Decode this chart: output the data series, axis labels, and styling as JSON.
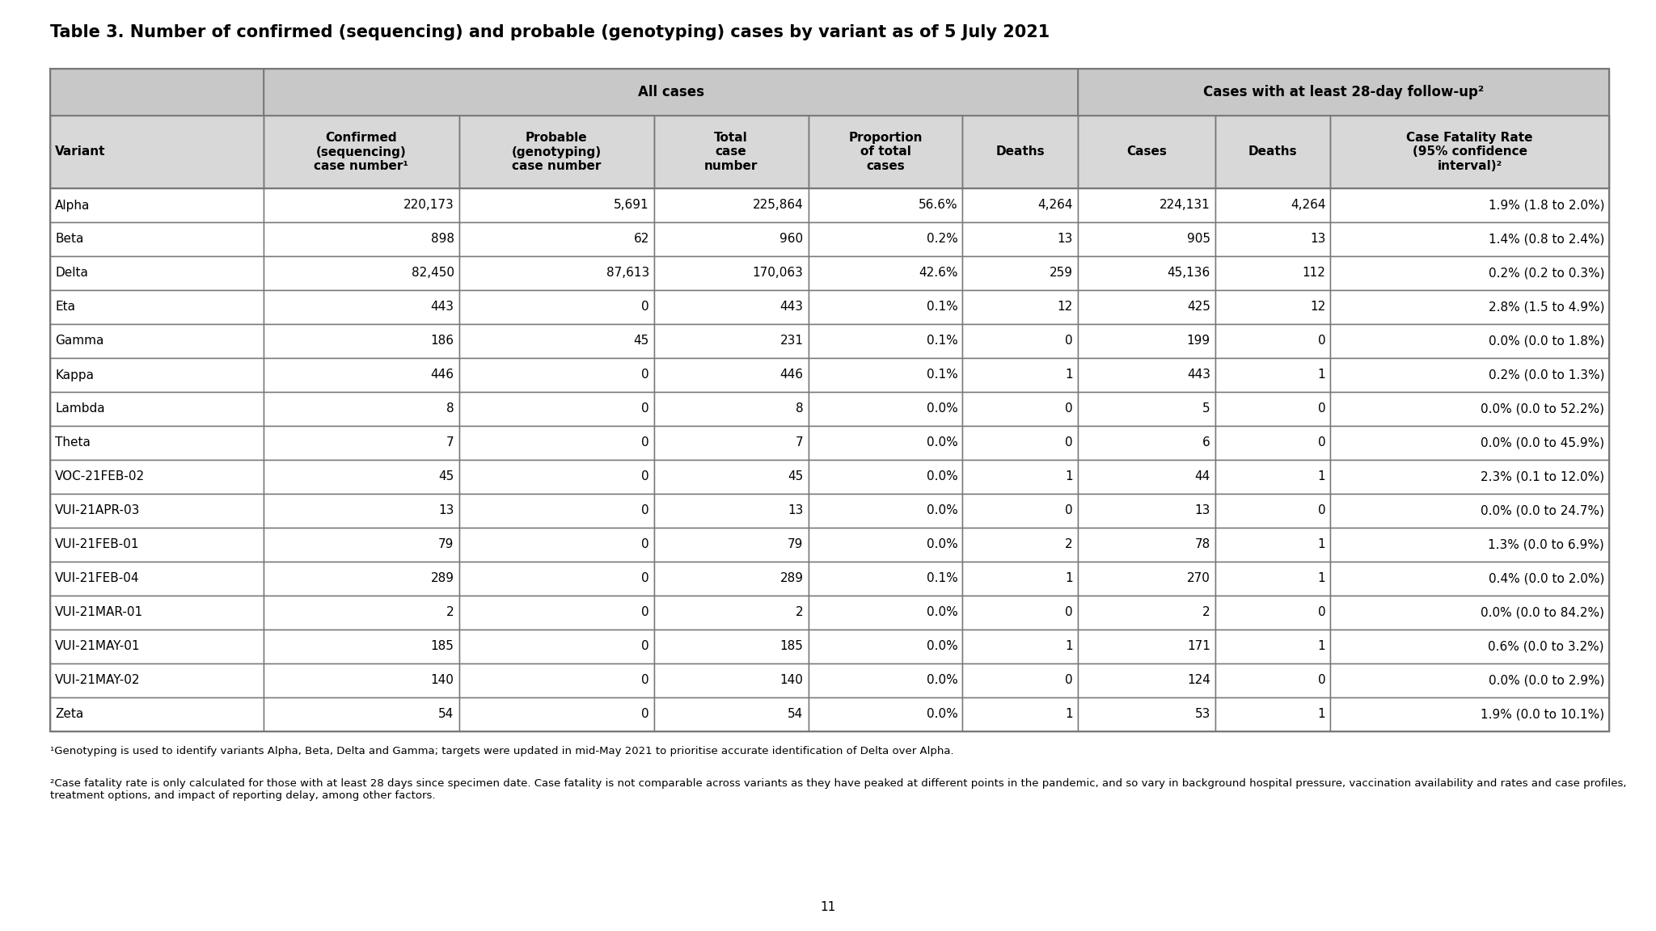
{
  "title": "Table 3. Number of confirmed (sequencing) and probable (genotyping) cases by variant as of 5 July 2021",
  "col_group1_label": "All cases",
  "col_group2_label": "Cases with at least 28-day follow-up²",
  "col_headers": [
    "Variant",
    "Confirmed\n(sequencing)\ncase number¹",
    "Probable\n(genotyping)\ncase number",
    "Total\ncase\nnumber",
    "Proportion\nof total\ncases",
    "Deaths",
    "Cases",
    "Deaths",
    "Case Fatality Rate\n(95% confidence\ninterval)²"
  ],
  "rows": [
    [
      "Alpha",
      "220,173",
      "5,691",
      "225,864",
      "56.6%",
      "4,264",
      "224,131",
      "4,264",
      "1.9% (1.8 to 2.0%)"
    ],
    [
      "Beta",
      "898",
      "62",
      "960",
      "0.2%",
      "13",
      "905",
      "13",
      "1.4% (0.8 to 2.4%)"
    ],
    [
      "Delta",
      "82,450",
      "87,613",
      "170,063",
      "42.6%",
      "259",
      "45,136",
      "112",
      "0.2% (0.2 to 0.3%)"
    ],
    [
      "Eta",
      "443",
      "0",
      "443",
      "0.1%",
      "12",
      "425",
      "12",
      "2.8% (1.5 to 4.9%)"
    ],
    [
      "Gamma",
      "186",
      "45",
      "231",
      "0.1%",
      "0",
      "199",
      "0",
      "0.0% (0.0 to 1.8%)"
    ],
    [
      "Kappa",
      "446",
      "0",
      "446",
      "0.1%",
      "1",
      "443",
      "1",
      "0.2% (0.0 to 1.3%)"
    ],
    [
      "Lambda",
      "8",
      "0",
      "8",
      "0.0%",
      "0",
      "5",
      "0",
      "0.0% (0.0 to 52.2%)"
    ],
    [
      "Theta",
      "7",
      "0",
      "7",
      "0.0%",
      "0",
      "6",
      "0",
      "0.0% (0.0 to 45.9%)"
    ],
    [
      "VOC-21FEB-02",
      "45",
      "0",
      "45",
      "0.0%",
      "1",
      "44",
      "1",
      "2.3% (0.1 to 12.0%)"
    ],
    [
      "VUI-21APR-03",
      "13",
      "0",
      "13",
      "0.0%",
      "0",
      "13",
      "0",
      "0.0% (0.0 to 24.7%)"
    ],
    [
      "VUI-21FEB-01",
      "79",
      "0",
      "79",
      "0.0%",
      "2",
      "78",
      "1",
      "1.3% (0.0 to 6.9%)"
    ],
    [
      "VUI-21FEB-04",
      "289",
      "0",
      "289",
      "0.1%",
      "1",
      "270",
      "1",
      "0.4% (0.0 to 2.0%)"
    ],
    [
      "VUI-21MAR-01",
      "2",
      "0",
      "2",
      "0.0%",
      "0",
      "2",
      "0",
      "0.0% (0.0 to 84.2%)"
    ],
    [
      "VUI-21MAY-01",
      "185",
      "0",
      "185",
      "0.0%",
      "1",
      "171",
      "1",
      "0.6% (0.0 to 3.2%)"
    ],
    [
      "VUI-21MAY-02",
      "140",
      "0",
      "140",
      "0.0%",
      "0",
      "124",
      "0",
      "0.0% (0.0 to 2.9%)"
    ],
    [
      "Zeta",
      "54",
      "0",
      "54",
      "0.0%",
      "1",
      "53",
      "1",
      "1.9% (0.0 to 10.1%)"
    ]
  ],
  "footnote1": "¹Genotyping is used to identify variants Alpha, Beta, Delta and Gamma; targets were updated in mid-May 2021 to prioritise accurate identification of Delta over Alpha.",
  "footnote2": "²Case fatality rate is only calculated for those with at least 28 days since specimen date. Case fatality is not comparable across variants as they have peaked at different points in the pandemic, and so vary in background hospital pressure, vaccination availability and rates and case profiles, treatment options, and impact of reporting delay, among other factors.",
  "page_number": "11",
  "header_bg": "#c8c8c8",
  "subheader_bg": "#d8d8d8",
  "white_bg": "#ffffff",
  "border_color": "#777777",
  "text_color": "#000000",
  "title_fontsize": 15,
  "header_fontsize": 11,
  "cell_fontsize": 11,
  "footnote_fontsize": 9.5
}
